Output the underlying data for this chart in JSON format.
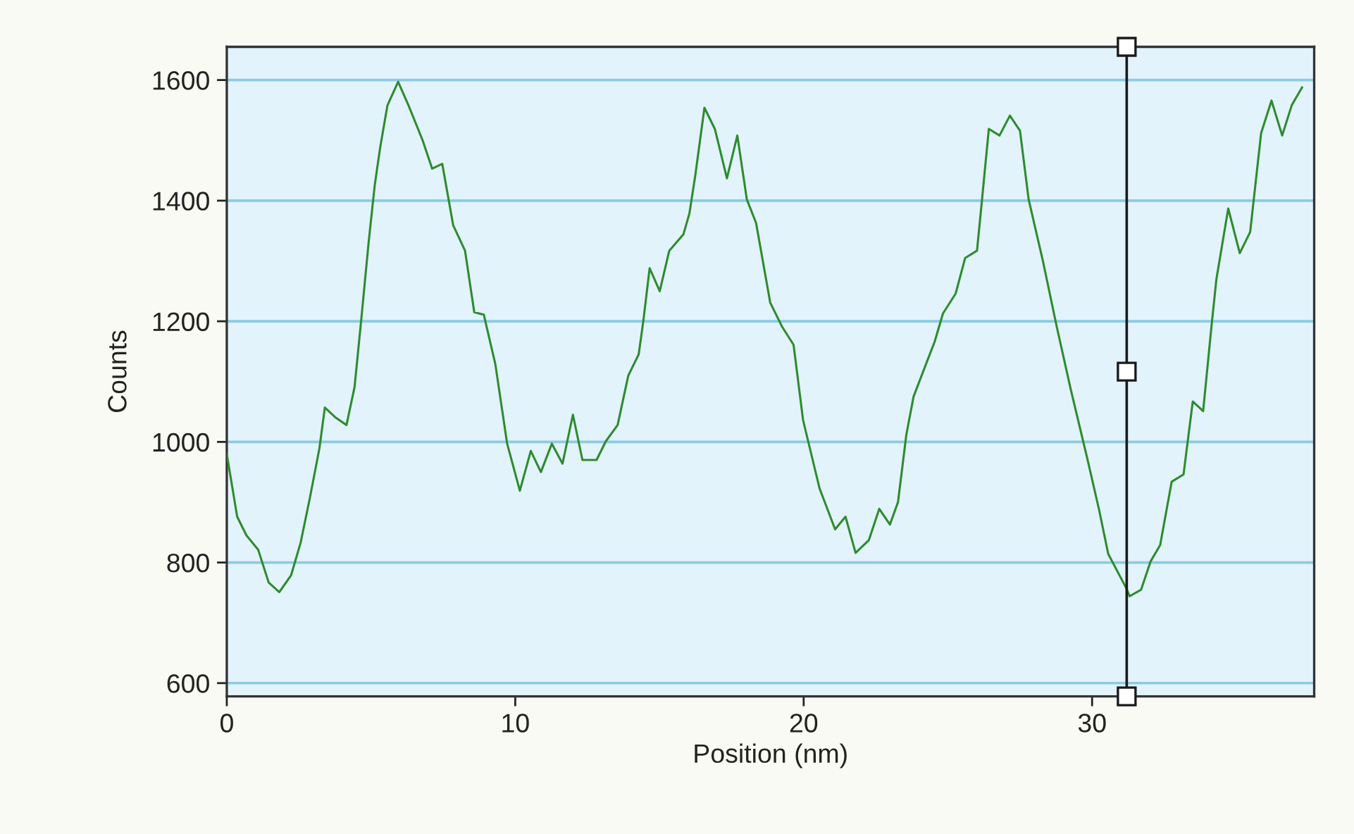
{
  "chart_data": {
    "type": "line",
    "xlabel": "Position (nm)",
    "ylabel": "Counts",
    "x": [
      0,
      0.36,
      0.68,
      1.09,
      1.45,
      1.82,
      2.23,
      2.56,
      2.88,
      3.21,
      3.4,
      3.78,
      4.15,
      4.43,
      4.67,
      4.92,
      5.13,
      5.32,
      5.57,
      5.94,
      6.3,
      6.79,
      7.12,
      7.47,
      7.85,
      8.26,
      8.58,
      8.91,
      9.31,
      9.72,
      10.16,
      10.54,
      10.89,
      11.27,
      11.64,
      12.0,
      12.33,
      12.82,
      13.14,
      13.55,
      13.92,
      14.28,
      14.44,
      14.66,
      15.01,
      15.34,
      15.83,
      16.04,
      16.24,
      16.56,
      16.92,
      17.34,
      17.7,
      18.03,
      18.35,
      18.84,
      19.24,
      19.65,
      19.98,
      20.55,
      21.09,
      21.45,
      21.8,
      22.26,
      22.62,
      22.99,
      23.27,
      23.56,
      23.81,
      24.21,
      24.54,
      24.83,
      25.27,
      25.6,
      26.01,
      26.17,
      26.42,
      26.79,
      27.15,
      27.5,
      27.8,
      28.29,
      28.77,
      29.26,
      29.83,
      30.24,
      30.56,
      31.19,
      31.3,
      31.7,
      32.03,
      32.36,
      32.76,
      33.17,
      33.49,
      33.85,
      34.14,
      34.31,
      34.72,
      35.12,
      35.48,
      35.86,
      36.22,
      36.59,
      36.92,
      37.28
    ],
    "series": [
      {
        "color": "#2e8b2e",
        "values": [
          980,
          876,
          845,
          821,
          767,
          751,
          779,
          833,
          907,
          989,
          1057,
          1040,
          1028,
          1091,
          1207,
          1332,
          1426,
          1489,
          1558,
          1597,
          1558,
          1500,
          1453,
          1461,
          1359,
          1317,
          1215,
          1211,
          1129,
          997,
          919,
          985,
          950,
          997,
          964,
          1045,
          970,
          970,
          1001,
          1028,
          1110,
          1145,
          1200,
          1288,
          1250,
          1317,
          1344,
          1379,
          1441,
          1554,
          1519,
          1437,
          1508,
          1402,
          1363,
          1231,
          1192,
          1161,
          1036,
          923,
          855,
          876,
          816,
          837,
          889,
          863,
          900,
          1012,
          1075,
          1125,
          1166,
          1213,
          1246,
          1305,
          1317,
          1395,
          1519,
          1508,
          1541,
          1516,
          1402,
          1301,
          1192,
          1087,
          973,
          888,
          814,
          757,
          744,
          755,
          802,
          829,
          934,
          946,
          1067,
          1051,
          1192,
          1270,
          1387,
          1313,
          1348,
          1512,
          1566,
          1508,
          1558,
          1588
        ]
      }
    ],
    "xlim": [
      0,
      37.7
    ],
    "ylim": [
      578,
      1655
    ],
    "xticks": [
      0,
      10,
      20,
      30
    ],
    "yticks": [
      600,
      800,
      1000,
      1200,
      1400,
      1600
    ],
    "grid": "y",
    "line_style": "solid",
    "ref_lines": [
      {
        "axis": "x",
        "value": 31.2,
        "color": "#1a1a1a"
      }
    ]
  }
}
